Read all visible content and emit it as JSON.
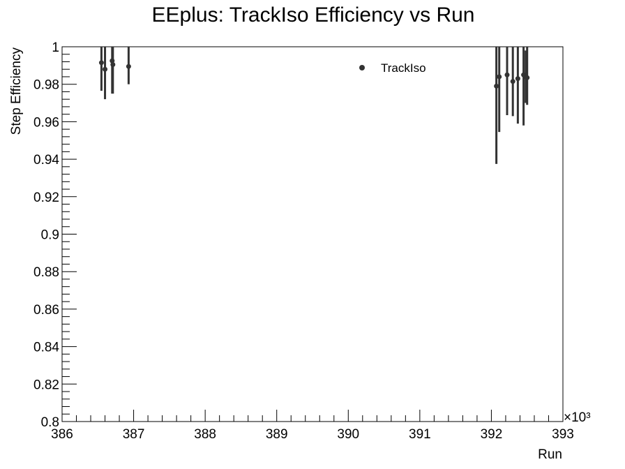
{
  "chart_data": {
    "type": "scatter",
    "title": "EEplus: TrackIso Efficiency vs Run",
    "xlabel": "Run",
    "ylabel": "Step Efficiency",
    "x_multiplier_label": "×10³",
    "xlim": [
      386,
      393
    ],
    "ylim": [
      0.8,
      1.0
    ],
    "x_ticks": [
      386,
      387,
      388,
      389,
      390,
      391,
      392,
      393
    ],
    "x_tick_labels": [
      "386",
      "387",
      "388",
      "389",
      "390",
      "391",
      "392",
      "393"
    ],
    "y_ticks": [
      0.8,
      0.82,
      0.84,
      0.86,
      0.88,
      0.9,
      0.92,
      0.94,
      0.96,
      0.98,
      1.0
    ],
    "y_tick_labels": [
      "0.8",
      "0.82",
      "0.84",
      "0.86",
      "0.88",
      "0.9",
      "0.92",
      "0.94",
      "0.96",
      "0.98",
      "1"
    ],
    "grid": false,
    "legend_position": "top-center",
    "series": [
      {
        "name": "TrackIso",
        "color": "#333333",
        "points": [
          {
            "x": 386.55,
            "y": 0.9915,
            "err_low": 0.015,
            "err_high": 0.0085
          },
          {
            "x": 386.6,
            "y": 0.988,
            "err_low": 0.016,
            "err_high": 0.012
          },
          {
            "x": 386.7,
            "y": 0.9925,
            "err_low": 0.0175,
            "err_high": 0.0075
          },
          {
            "x": 386.71,
            "y": 0.9905,
            "err_low": 0.0155,
            "err_high": 0.0095
          },
          {
            "x": 386.93,
            "y": 0.9895,
            "err_low": 0.0095,
            "err_high": 0.0105
          },
          {
            "x": 392.07,
            "y": 0.979,
            "err_low": 0.0415,
            "err_high": 0.021
          },
          {
            "x": 392.11,
            "y": 0.984,
            "err_low": 0.0295,
            "err_high": 0.016
          },
          {
            "x": 392.22,
            "y": 0.985,
            "err_low": 0.0215,
            "err_high": 0.015
          },
          {
            "x": 392.3,
            "y": 0.9815,
            "err_low": 0.0185,
            "err_high": 0.0185
          },
          {
            "x": 392.37,
            "y": 0.983,
            "err_low": 0.024,
            "err_high": 0.017
          },
          {
            "x": 392.45,
            "y": 0.985,
            "err_low": 0.027,
            "err_high": 0.015
          },
          {
            "x": 392.48,
            "y": 0.984,
            "err_low": 0.014,
            "err_high": 0.014
          },
          {
            "x": 392.5,
            "y": 0.9835,
            "err_low": 0.0145,
            "err_high": 0.0165
          }
        ]
      }
    ]
  }
}
